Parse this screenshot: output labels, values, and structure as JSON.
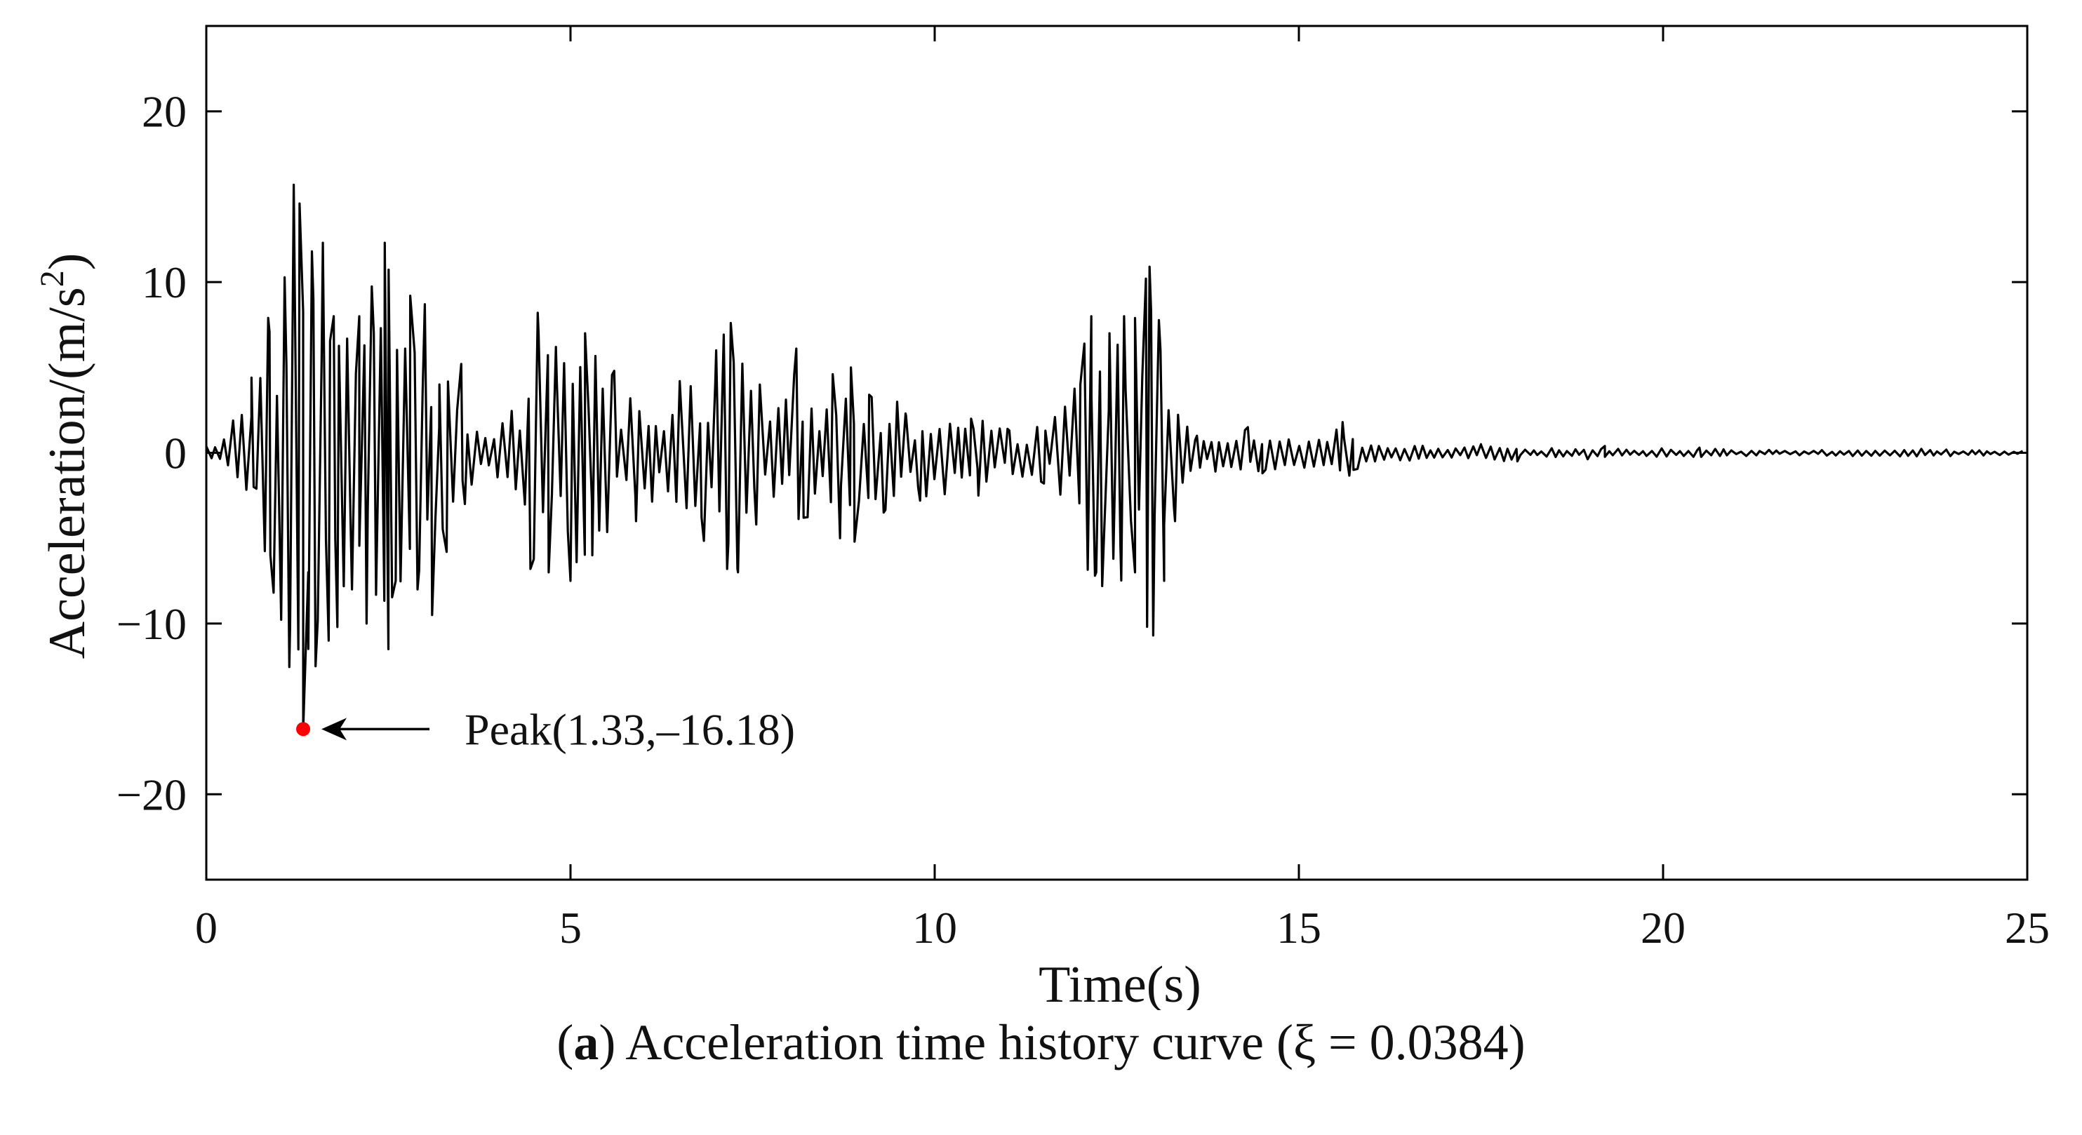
{
  "chart_data": {
    "type": "line",
    "xlabel": "Time(s)",
    "ylabel_main": "Acceleration/(m/s",
    "ylabel_sup": "2",
    "ylabel_close": ")",
    "xlim": [
      0,
      25
    ],
    "ylim": [
      -25,
      25
    ],
    "xticks": [
      0,
      5,
      10,
      15,
      20,
      25
    ],
    "yticks": [
      -20,
      -10,
      0,
      10,
      20
    ],
    "ytick_labels": [
      "−20",
      "−10",
      "0",
      "10",
      "20"
    ],
    "grid": false,
    "series": [
      {
        "color": "#000000",
        "envelope": [
          [
            0.0,
            0.5
          ],
          [
            0.3,
            1.0
          ],
          [
            0.55,
            4.5
          ],
          [
            0.8,
            8.0
          ],
          [
            1.0,
            10.0
          ],
          [
            1.2,
            15.7
          ],
          [
            1.33,
            16.18
          ],
          [
            1.45,
            12.0
          ],
          [
            1.6,
            12.0
          ],
          [
            1.8,
            8.0
          ],
          [
            2.0,
            8.5
          ],
          [
            2.2,
            9.0
          ],
          [
            2.45,
            12.3
          ],
          [
            2.6,
            8.0
          ],
          [
            2.8,
            9.2
          ],
          [
            3.0,
            6.0
          ],
          [
            3.2,
            4.5
          ],
          [
            3.5,
            5.0
          ],
          [
            3.7,
            1.5
          ],
          [
            4.0,
            2.0
          ],
          [
            4.3,
            3.0
          ],
          [
            4.55,
            8.2
          ],
          [
            4.8,
            6.5
          ],
          [
            5.0,
            7.0
          ],
          [
            5.3,
            6.0
          ],
          [
            5.6,
            4.5
          ],
          [
            5.9,
            3.0
          ],
          [
            6.2,
            3.0
          ],
          [
            6.5,
            4.0
          ],
          [
            6.8,
            5.0
          ],
          [
            7.1,
            7.5
          ],
          [
            7.3,
            7.0
          ],
          [
            7.6,
            4.0
          ],
          [
            7.9,
            3.0
          ],
          [
            8.1,
            5.5
          ],
          [
            8.3,
            3.5
          ],
          [
            8.6,
            5.0
          ],
          [
            8.8,
            5.0
          ],
          [
            9.1,
            3.5
          ],
          [
            9.4,
            3.5
          ],
          [
            9.7,
            2.0
          ],
          [
            10.0,
            3.0
          ],
          [
            10.3,
            2.0
          ],
          [
            10.6,
            2.0
          ],
          [
            11.0,
            1.5
          ],
          [
            11.3,
            1.5
          ],
          [
            11.6,
            2.0
          ],
          [
            11.9,
            4.0
          ],
          [
            12.15,
            8.0
          ],
          [
            12.4,
            7.0
          ],
          [
            12.6,
            8.0
          ],
          [
            12.85,
            10.0
          ],
          [
            13.0,
            10.8
          ],
          [
            13.2,
            6.0
          ],
          [
            13.4,
            2.0
          ],
          [
            13.7,
            1.0
          ],
          [
            14.0,
            1.2
          ],
          [
            14.3,
            1.5
          ],
          [
            14.6,
            1.0
          ],
          [
            15.0,
            1.0
          ],
          [
            15.3,
            1.2
          ],
          [
            15.6,
            1.8
          ],
          [
            15.9,
            0.6
          ],
          [
            16.3,
            0.5
          ],
          [
            16.8,
            0.4
          ],
          [
            17.2,
            0.3
          ],
          [
            17.5,
            0.5
          ],
          [
            17.8,
            0.5
          ],
          [
            18.2,
            0.2
          ],
          [
            19.0,
            0.4
          ],
          [
            19.5,
            0.2
          ],
          [
            20.0,
            0.3
          ],
          [
            21.0,
            0.2
          ],
          [
            22.0,
            0.15
          ],
          [
            23.5,
            0.25
          ],
          [
            25.0,
            0.1
          ]
        ],
        "peaks": [
          [
            0.62,
            4.4
          ],
          [
            0.65,
            -2.0
          ],
          [
            0.85,
            7.9
          ],
          [
            0.88,
            -6.0
          ],
          [
            1.0,
            -3.2
          ],
          [
            1.1,
            5.1
          ],
          [
            1.15,
            -10.2
          ],
          [
            1.2,
            15.7
          ],
          [
            1.28,
            14.6
          ],
          [
            1.33,
            -16.18
          ],
          [
            1.4,
            -7.0
          ],
          [
            1.45,
            11.8
          ],
          [
            1.5,
            -12.5
          ],
          [
            1.6,
            12.3
          ],
          [
            1.68,
            -11.0
          ],
          [
            1.75,
            8.0
          ],
          [
            1.8,
            -10.2
          ],
          [
            2.0,
            -8.0
          ],
          [
            2.1,
            8.0
          ],
          [
            2.2,
            -10.0
          ],
          [
            2.3,
            7.0
          ],
          [
            2.45,
            12.3
          ],
          [
            2.5,
            -11.5
          ],
          [
            2.6,
            -7.5
          ],
          [
            2.8,
            9.2
          ],
          [
            2.9,
            -8.0
          ],
          [
            3.0,
            8.7
          ],
          [
            3.1,
            -9.5
          ],
          [
            3.2,
            4.0
          ],
          [
            3.3,
            -5.8
          ],
          [
            3.5,
            5.2
          ],
          [
            3.55,
            -3.0
          ],
          [
            4.45,
            -6.8
          ],
          [
            4.55,
            8.2
          ],
          [
            4.7,
            -7.0
          ],
          [
            4.8,
            6.2
          ],
          [
            5.0,
            -7.5
          ],
          [
            5.2,
            7.0
          ],
          [
            5.3,
            -6.0
          ],
          [
            5.6,
            4.8
          ],
          [
            5.9,
            -4.0
          ],
          [
            6.5,
            4.2
          ],
          [
            6.8,
            -3.8
          ],
          [
            7.0,
            6.0
          ],
          [
            7.15,
            -6.8
          ],
          [
            7.2,
            7.6
          ],
          [
            7.3,
            -7.0
          ],
          [
            7.55,
            -4.2
          ],
          [
            8.1,
            6.1
          ],
          [
            8.2,
            -3.8
          ],
          [
            8.6,
            4.6
          ],
          [
            8.7,
            -5.0
          ],
          [
            8.85,
            5.0
          ],
          [
            8.9,
            -5.2
          ],
          [
            9.1,
            3.4
          ],
          [
            9.3,
            -3.5
          ],
          [
            9.6,
            2.3
          ],
          [
            9.8,
            -2.8
          ],
          [
            10.5,
            2.0
          ],
          [
            10.6,
            -2.5
          ],
          [
            11.0,
            1.4
          ],
          [
            11.5,
            -1.8
          ],
          [
            12.0,
            4.0
          ],
          [
            12.15,
            8.0
          ],
          [
            12.2,
            -7.2
          ],
          [
            12.3,
            -7.8
          ],
          [
            12.4,
            7.0
          ],
          [
            12.55,
            -5.5
          ],
          [
            12.6,
            8.0
          ],
          [
            12.75,
            -7.0
          ],
          [
            12.9,
            10.2
          ],
          [
            12.95,
            10.9
          ],
          [
            13.0,
            -10.7
          ],
          [
            13.1,
            6.0
          ],
          [
            13.15,
            -7.5
          ],
          [
            13.3,
            -4.0
          ],
          [
            13.6,
            1.0
          ],
          [
            14.3,
            1.5
          ],
          [
            14.5,
            -1.2
          ],
          [
            15.6,
            1.8
          ],
          [
            15.75,
            -1.0
          ],
          [
            17.5,
            0.5
          ],
          [
            18.0,
            -0.5
          ],
          [
            19.2,
            0.4
          ],
          [
            20.5,
            0.3
          ]
        ]
      }
    ],
    "annotation": {
      "text": "Peak(1.33,–16.18)",
      "x": 1.33,
      "y": -16.18,
      "marker_color": "#ff0000"
    }
  },
  "caption": {
    "label": "a",
    "text": " Acceleration time history curve (ξ = 0.0384)"
  }
}
